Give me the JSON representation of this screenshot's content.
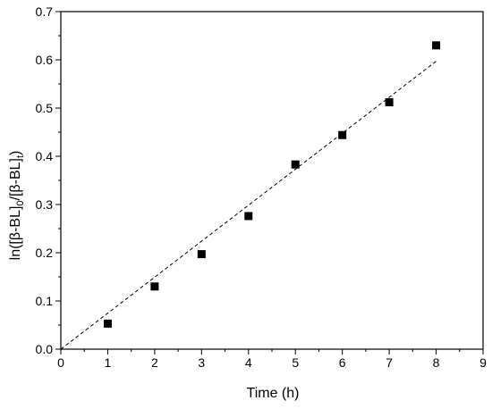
{
  "chart_data": {
    "type": "scatter",
    "xlabel": "Time (h)",
    "ylabel": {
      "parts": [
        "ln([β-BL]",
        "0",
        "/[β-BL]",
        "t",
        ")"
      ]
    },
    "xlim": [
      0,
      9
    ],
    "ylim": [
      0,
      0.7
    ],
    "xticks": [
      "0",
      "1",
      "2",
      "3",
      "4",
      "5",
      "6",
      "7",
      "8",
      "9"
    ],
    "yticks": [
      "0.0",
      "0.1",
      "0.2",
      "0.3",
      "0.4",
      "0.5",
      "0.6",
      "0.7"
    ],
    "grid": false,
    "legend": "none",
    "points": {
      "x": [
        1,
        2,
        3,
        4,
        5,
        6,
        7,
        8
      ],
      "y": [
        0.053,
        0.13,
        0.197,
        0.276,
        0.383,
        0.444,
        0.512,
        0.63
      ]
    },
    "fit_line": {
      "style": "dashed",
      "x": [
        0,
        8
      ],
      "y": [
        0,
        0.597
      ]
    },
    "marker": "square",
    "color": "#000000"
  }
}
